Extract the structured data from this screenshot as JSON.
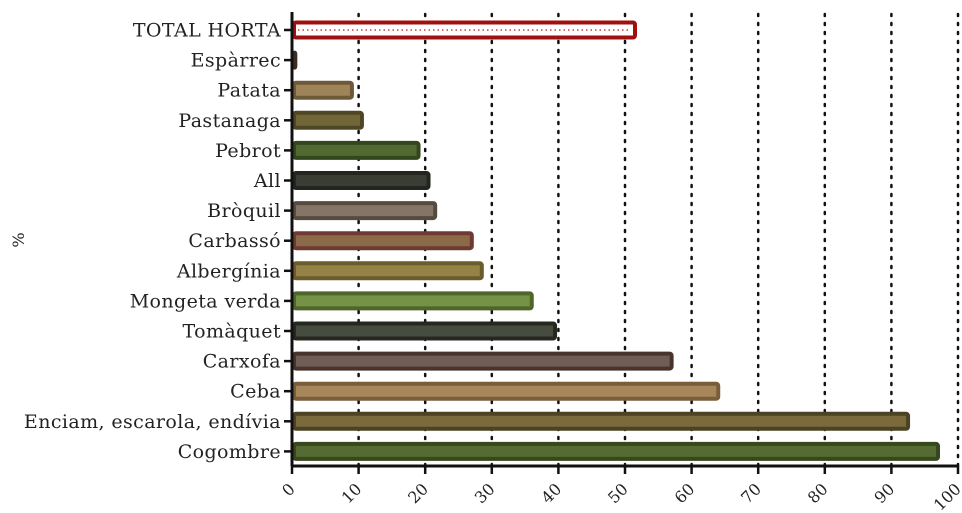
{
  "chart_data": {
    "type": "bar",
    "orientation": "horizontal",
    "title": "",
    "xlabel": "",
    "ylabel": "%",
    "xlim": [
      0,
      100
    ],
    "xticks": [
      0,
      10,
      20,
      30,
      40,
      50,
      60,
      70,
      80,
      90,
      100
    ],
    "grid": "vertical dotted",
    "bars": [
      {
        "label": "TOTAL HORTA",
        "value": 51.5,
        "fill": "#ffffff",
        "stroke": "#a01010",
        "pattern": "dotted"
      },
      {
        "label": "Espàrrec",
        "value": 0.5,
        "fill": "#5a4a3a",
        "stroke": "#3a2e22"
      },
      {
        "label": "Patata",
        "value": 9,
        "fill": "#9e8458",
        "stroke": "#6e5a38"
      },
      {
        "label": "Pastanaga",
        "value": 10.5,
        "fill": "#716638",
        "stroke": "#4e4624"
      },
      {
        "label": "Pebrot",
        "value": 19,
        "fill": "#526a32",
        "stroke": "#34461e"
      },
      {
        "label": "All",
        "value": 20.5,
        "fill": "#3a3d34",
        "stroke": "#23251f"
      },
      {
        "label": "Bròquil",
        "value": 21.5,
        "fill": "#857566",
        "stroke": "#574b40"
      },
      {
        "label": "Carbassó",
        "value": 27,
        "fill": "#8a6a48",
        "stroke": "#6e3a32"
      },
      {
        "label": "Albergínia",
        "value": 28.5,
        "fill": "#948246",
        "stroke": "#6b5c2c"
      },
      {
        "label": "Mongeta verda",
        "value": 36,
        "fill": "#759246",
        "stroke": "#4d662a"
      },
      {
        "label": "Tomàquet",
        "value": 39.5,
        "fill": "#474c40",
        "stroke": "#25281f"
      },
      {
        "label": "Carxofa",
        "value": 57,
        "fill": "#6e5e56",
        "stroke": "#48342c"
      },
      {
        "label": "Ceba",
        "value": 64,
        "fill": "#a7875a",
        "stroke": "#7a5e3a"
      },
      {
        "label": "Enciam, escarola, endívia",
        "value": 92.5,
        "fill": "#7a6a3c",
        "stroke": "#4c4224"
      },
      {
        "label": "Cogombre",
        "value": 97,
        "fill": "#556b32",
        "stroke": "#37471e"
      }
    ]
  }
}
